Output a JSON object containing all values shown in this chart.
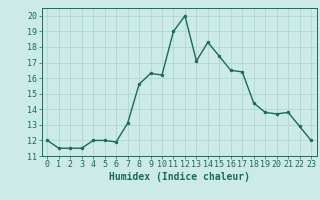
{
  "xlabel": "Humidex (Indice chaleur)",
  "x": [
    0,
    1,
    2,
    3,
    4,
    5,
    6,
    7,
    8,
    9,
    10,
    11,
    12,
    13,
    14,
    15,
    16,
    17,
    18,
    19,
    20,
    21,
    22,
    23
  ],
  "y": [
    12,
    11.5,
    11.5,
    11.5,
    12,
    12,
    11.9,
    13.1,
    15.6,
    16.3,
    16.2,
    19,
    20,
    17.1,
    18.3,
    17.4,
    16.5,
    16.4,
    14.4,
    13.8,
    13.7,
    13.8,
    12.9,
    12
  ],
  "line_color": "#1a6b5a",
  "marker_color": "#1a6b5a",
  "bg_color": "#cceae8",
  "grid_color": "#aad4d0",
  "ylim": [
    11,
    20.5
  ],
  "yticks": [
    11,
    12,
    13,
    14,
    15,
    16,
    17,
    18,
    19,
    20
  ],
  "xticks": [
    0,
    1,
    2,
    3,
    4,
    5,
    6,
    7,
    8,
    9,
    10,
    11,
    12,
    13,
    14,
    15,
    16,
    17,
    18,
    19,
    20,
    21,
    22,
    23
  ],
  "xlim": [
    -0.5,
    23.5
  ],
  "fontsize_label": 7,
  "fontsize_tick": 6,
  "line_width": 1.0,
  "marker_size": 2.0
}
